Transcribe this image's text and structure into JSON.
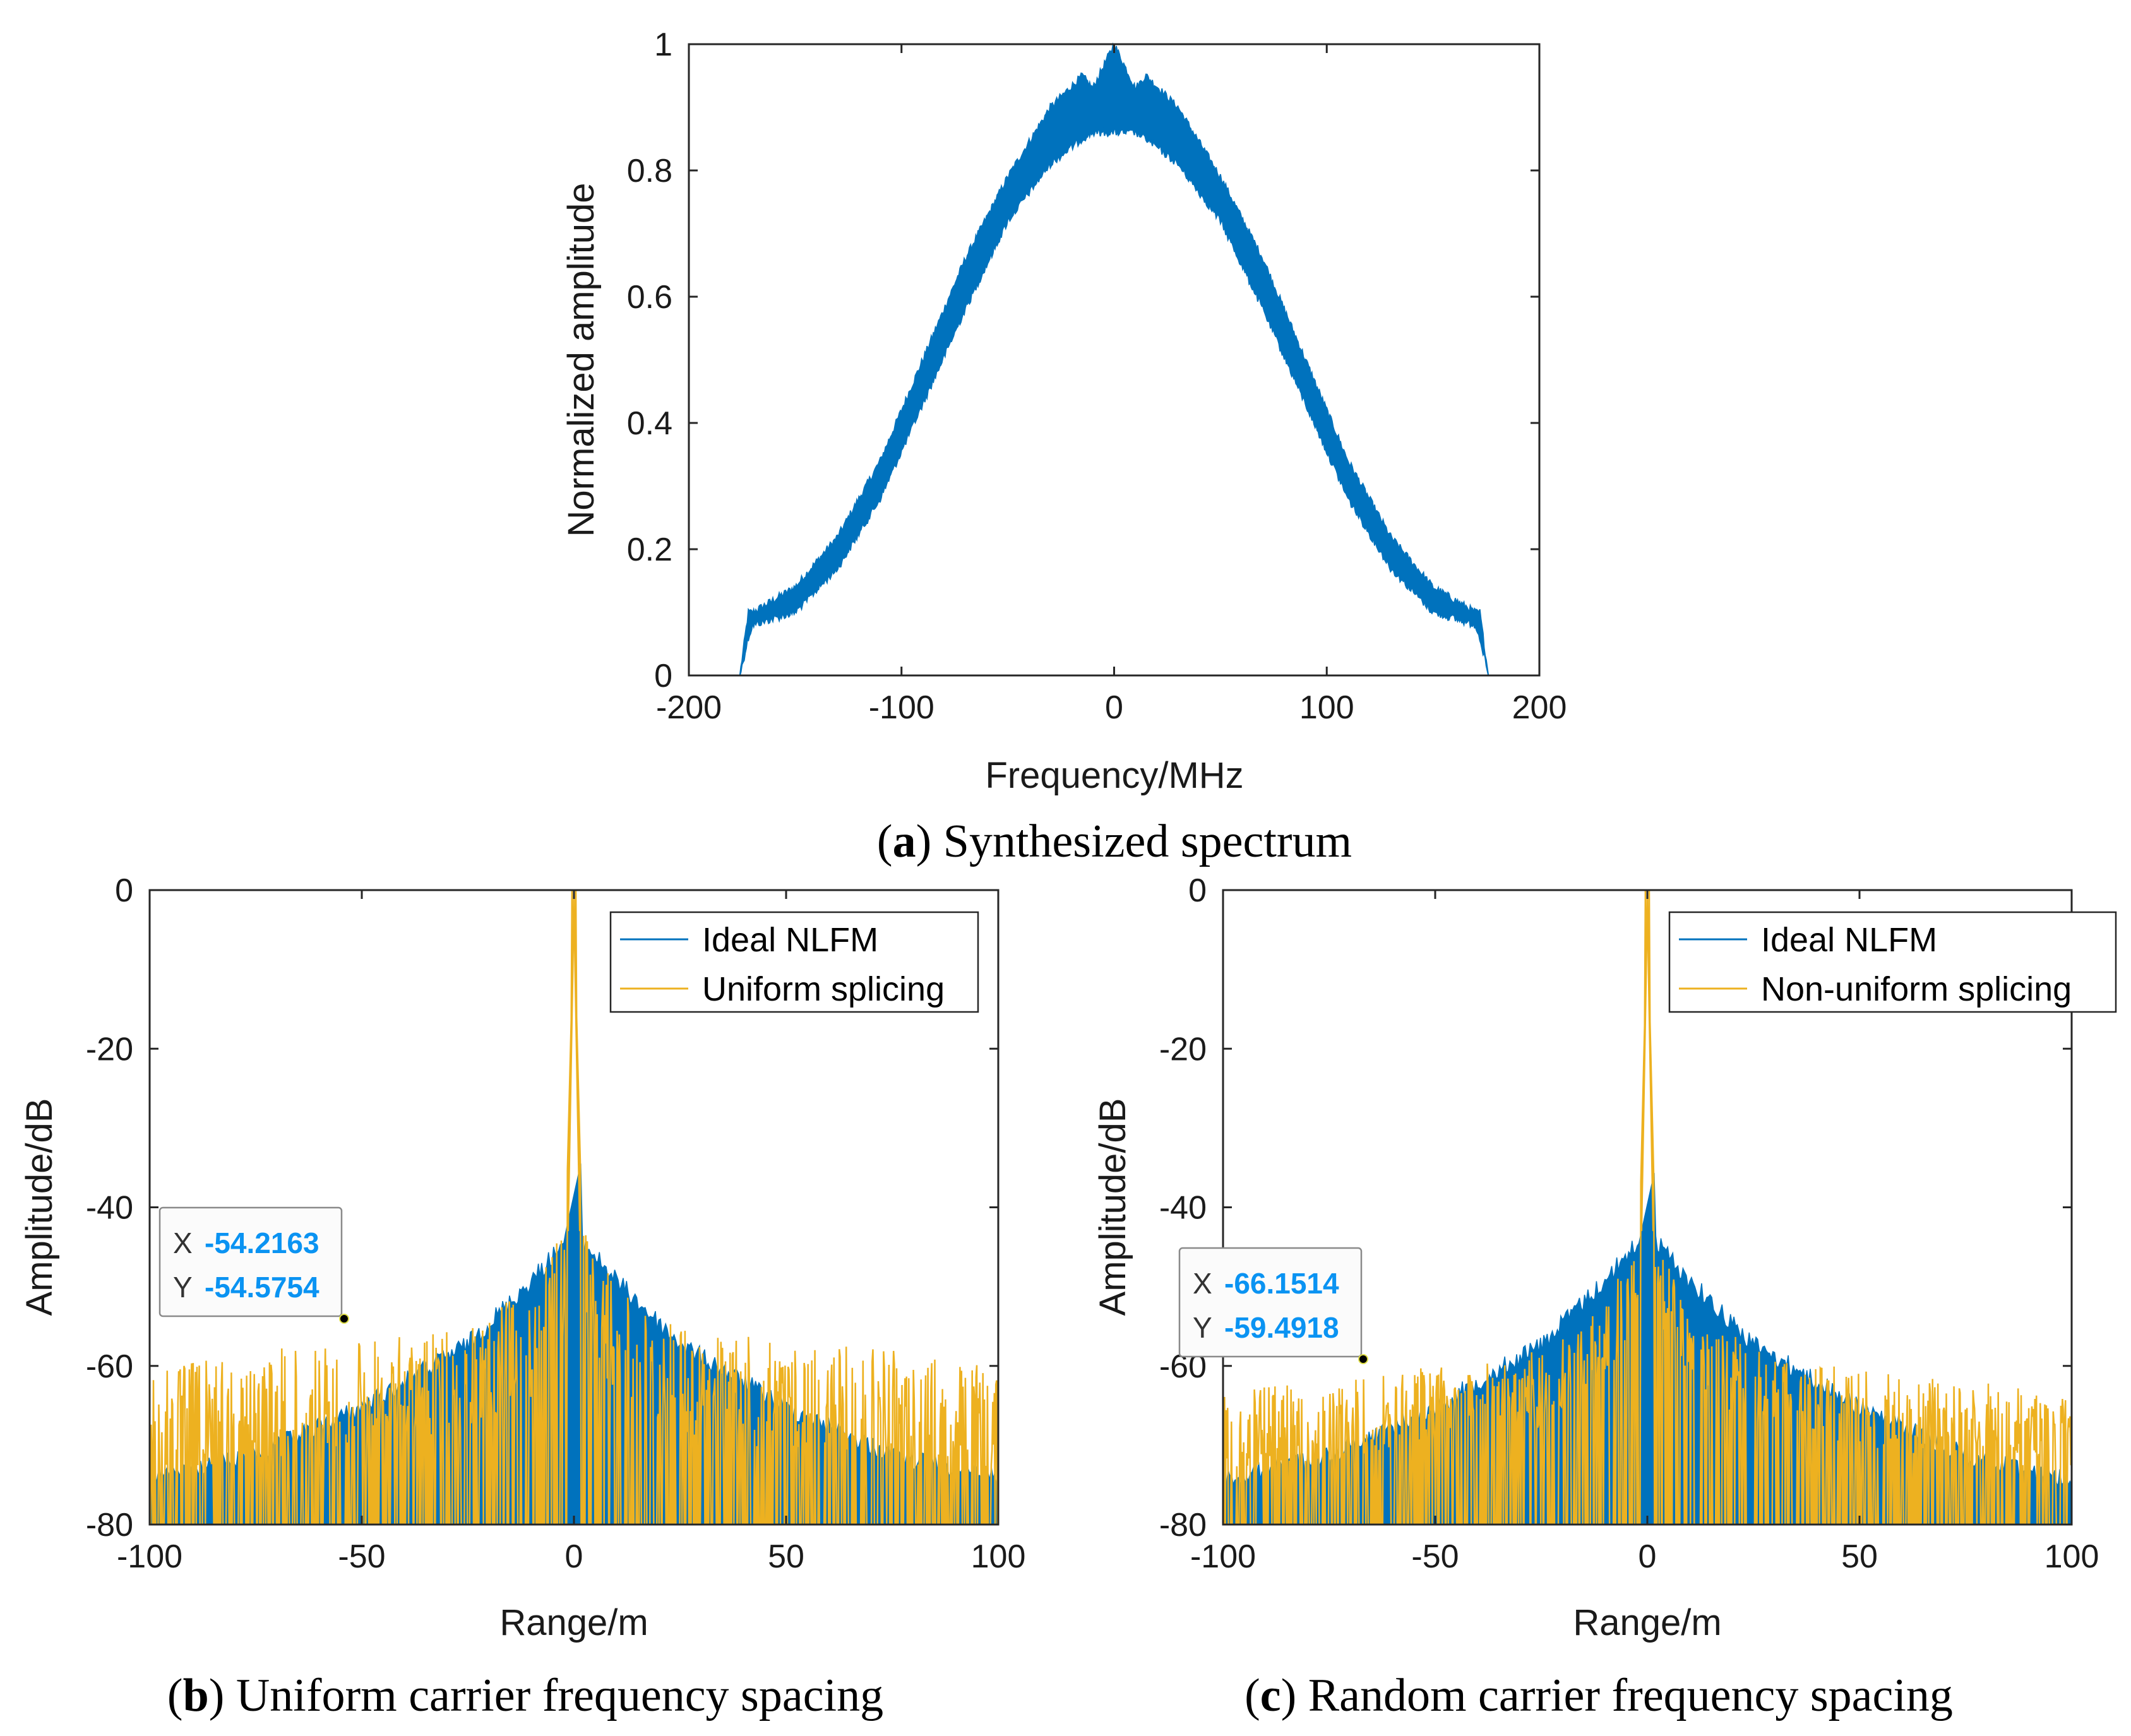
{
  "chart_data": [
    {
      "id": "a",
      "type": "area",
      "title": "",
      "xlabel": "Frequency/MHz",
      "ylabel": "Normalized amplitude",
      "xlim": [
        -200,
        200
      ],
      "ylim": [
        0,
        1
      ],
      "xticks": [
        -200,
        -100,
        0,
        100,
        200
      ],
      "xtick_labels": [
        "-200",
        "-100",
        "0",
        "100",
        "200"
      ],
      "yticks": [
        0,
        0.2,
        0.4,
        0.6,
        0.8,
        1
      ],
      "ytick_labels": [
        "0",
        "0.2",
        "0.4",
        "0.6",
        "0.8",
        "1"
      ],
      "series": [
        {
          "name": "Synthesized spectrum",
          "color": "#0072bd",
          "x": [
            -200,
            -176,
            -172,
            -170,
            -150,
            -130,
            -110,
            -90,
            -70,
            -50,
            -30,
            -15,
            -10,
            0,
            10,
            15,
            30,
            50,
            70,
            90,
            110,
            130,
            150,
            170,
            172,
            176,
            200
          ],
          "y_low": [
            0,
            0,
            0.06,
            0.08,
            0.1,
            0.17,
            0.28,
            0.43,
            0.58,
            0.72,
            0.81,
            0.85,
            0.86,
            0.86,
            0.86,
            0.85,
            0.81,
            0.72,
            0.58,
            0.43,
            0.28,
            0.17,
            0.1,
            0.08,
            0.06,
            0,
            0
          ],
          "y_high": [
            0,
            0,
            0.1,
            0.1,
            0.14,
            0.22,
            0.34,
            0.5,
            0.66,
            0.79,
            0.9,
            0.95,
            0.93,
            1.0,
            0.93,
            0.95,
            0.9,
            0.79,
            0.66,
            0.5,
            0.34,
            0.22,
            0.14,
            0.1,
            0.1,
            0,
            0
          ]
        }
      ],
      "caption_label": "a",
      "caption_text": ") Synthesized spectrum"
    },
    {
      "id": "b",
      "type": "area",
      "xlabel": "Range/m",
      "ylabel": "Amplitude/dB",
      "xlim": [
        -100,
        100
      ],
      "ylim": [
        -80,
        0
      ],
      "xticks": [
        -100,
        -50,
        0,
        50,
        100
      ],
      "xtick_labels": [
        "-100",
        "-50",
        "0",
        "50",
        "100"
      ],
      "yticks": [
        -80,
        -60,
        -40,
        -20,
        0
      ],
      "ytick_labels": [
        "-80",
        "-60",
        "-40",
        "-20",
        "0"
      ],
      "series": [
        {
          "name": "Ideal NLFM",
          "color": "#0072bd",
          "x": [
            -100,
            -75,
            -50,
            -25,
            -10,
            -2,
            0,
            2,
            10,
            25,
            50,
            75,
            100
          ],
          "y": [
            -73,
            -70,
            -64,
            -56,
            -48,
            -43,
            0,
            -43,
            -48,
            -56,
            -64,
            -70,
            -73
          ]
        },
        {
          "name": "Uniform splicing",
          "color": "#edb120",
          "x": [
            -100,
            -75,
            -50,
            -25,
            -10,
            -2,
            0,
            2,
            10,
            25,
            50,
            75,
            100
          ],
          "y": [
            -60,
            -58,
            -57,
            -55,
            -50,
            -42,
            0,
            -42,
            -50,
            -55,
            -57,
            -58,
            -60
          ]
        }
      ],
      "datatip": {
        "x_label": "X",
        "x_value": "-54.2163",
        "y_label": "Y",
        "y_value": "-54.5754",
        "x": -54.2163,
        "y": -54.5754
      },
      "caption_label": "b",
      "caption_text": ") Uniform carrier frequency spacing"
    },
    {
      "id": "c",
      "type": "area",
      "xlabel": "Range/m",
      "ylabel": "Amplitude/dB",
      "xlim": [
        -100,
        100
      ],
      "ylim": [
        -80,
        0
      ],
      "xticks": [
        -100,
        -50,
        0,
        50,
        100
      ],
      "xtick_labels": [
        "-100",
        "-50",
        "0",
        "50",
        "100"
      ],
      "yticks": [
        -80,
        -60,
        -40,
        -20,
        0
      ],
      "ytick_labels": [
        "-80",
        "-60",
        "-40",
        "-20",
        "0"
      ],
      "series": [
        {
          "name": "Ideal NLFM",
          "color": "#0072bd",
          "x": [
            -100,
            -75,
            -50,
            -25,
            -10,
            -2,
            0,
            2,
            10,
            25,
            50,
            75,
            100
          ],
          "y": [
            -73,
            -70,
            -64,
            -56,
            -48,
            -43,
            0,
            -43,
            -48,
            -56,
            -64,
            -70,
            -73
          ]
        },
        {
          "name": "Non-uniform splicing",
          "color": "#edb120",
          "x": [
            -100,
            -75,
            -50,
            -25,
            -10,
            -2,
            0,
            2,
            10,
            25,
            50,
            75,
            100
          ],
          "y": [
            -63,
            -62,
            -60,
            -58,
            -52,
            -44,
            0,
            -44,
            -52,
            -58,
            -60,
            -62,
            -63
          ]
        }
      ],
      "datatip": {
        "x_label": "X",
        "x_value": "-66.1514",
        "y_label": "Y",
        "y_value": "-59.4918",
        "x": -66.1514,
        "y": -59.4918
      },
      "caption_label": "c",
      "caption_text": ") Random carrier frequency spacing"
    }
  ]
}
